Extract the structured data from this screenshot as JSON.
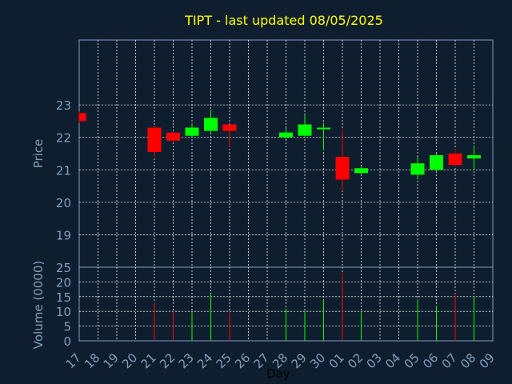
{
  "chart_data": {
    "type": "candlestick",
    "title": "TIPT - last updated 08/05/2025",
    "colors": {
      "background": "#0f1e2e",
      "up": "#00ff00",
      "down": "#ff0000",
      "title": "#ffff00",
      "axis_text": "#7f9fc0"
    },
    "grid": true,
    "x_ticks": [
      "17",
      "18",
      "19",
      "20",
      "21",
      "22",
      "23",
      "24",
      "25",
      "26",
      "27",
      "28",
      "29",
      "30",
      "01",
      "02",
      "03",
      "04",
      "05",
      "06",
      "07",
      "08",
      "09"
    ],
    "xlabel": "Day",
    "price_panel": {
      "ylabel": "Price",
      "ylim": [
        18,
        25
      ],
      "yticks": [
        "19",
        "20",
        "21",
        "22",
        "23"
      ],
      "candles": [
        {
          "day": "17",
          "open": 22.75,
          "close": 22.5,
          "high": 22.8,
          "low": 22.45
        },
        {
          "day": "21",
          "open": 22.3,
          "close": 21.55,
          "high": 22.35,
          "low": 21.4
        },
        {
          "day": "22",
          "open": 22.15,
          "close": 21.9,
          "high": 22.15,
          "low": 21.85
        },
        {
          "day": "23",
          "open": 22.05,
          "close": 22.3,
          "high": 22.45,
          "low": 22.0
        },
        {
          "day": "24",
          "open": 22.2,
          "close": 22.6,
          "high": 22.85,
          "low": 22.15
        },
        {
          "day": "25",
          "open": 22.4,
          "close": 22.2,
          "high": 22.4,
          "low": 21.7
        },
        {
          "day": "28",
          "open": 22.0,
          "close": 22.15,
          "high": 22.3,
          "low": 21.95
        },
        {
          "day": "29",
          "open": 22.05,
          "close": 22.4,
          "high": 22.7,
          "low": 22.0
        },
        {
          "day": "30",
          "open": 22.25,
          "close": 22.3,
          "high": 22.45,
          "low": 21.6
        },
        {
          "day": "01",
          "open": 21.4,
          "close": 20.7,
          "high": 22.25,
          "low": 20.35
        },
        {
          "day": "02",
          "open": 20.9,
          "close": 21.05,
          "high": 21.1,
          "low": 20.85
        },
        {
          "day": "05",
          "open": 20.85,
          "close": 21.2,
          "high": 21.4,
          "low": 20.7
        },
        {
          "day": "06",
          "open": 21.0,
          "close": 21.45,
          "high": 21.5,
          "low": 20.95
        },
        {
          "day": "07",
          "open": 21.5,
          "close": 21.15,
          "high": 21.65,
          "low": 21.1
        },
        {
          "day": "08",
          "open": 21.35,
          "close": 21.45,
          "high": 21.75,
          "low": 21.0
        }
      ]
    },
    "volume_panel": {
      "ylabel": "Volume (0000)",
      "ylim": [
        0,
        25
      ],
      "yticks": [
        "0",
        "5",
        "10",
        "15",
        "20",
        "25"
      ],
      "bars": [
        {
          "day": "21",
          "value": 13,
          "direction": "down"
        },
        {
          "day": "22",
          "value": 10,
          "direction": "down"
        },
        {
          "day": "23",
          "value": 10,
          "direction": "up"
        },
        {
          "day": "24",
          "value": 16,
          "direction": "up"
        },
        {
          "day": "25",
          "value": 10,
          "direction": "down"
        },
        {
          "day": "28",
          "value": 11,
          "direction": "up"
        },
        {
          "day": "29",
          "value": 10,
          "direction": "up"
        },
        {
          "day": "30",
          "value": 14,
          "direction": "up"
        },
        {
          "day": "01",
          "value": 23,
          "direction": "down"
        },
        {
          "day": "02",
          "value": 10,
          "direction": "up"
        },
        {
          "day": "05",
          "value": 14,
          "direction": "up"
        },
        {
          "day": "06",
          "value": 12,
          "direction": "up"
        },
        {
          "day": "07",
          "value": 16,
          "direction": "down"
        },
        {
          "day": "08",
          "value": 15,
          "direction": "up"
        }
      ]
    }
  }
}
